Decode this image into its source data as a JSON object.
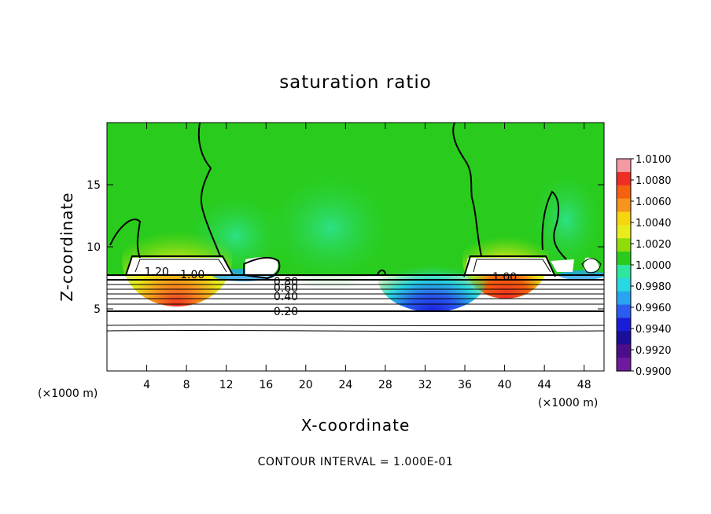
{
  "chart_data": {
    "type": "heatmap",
    "title": "saturation ratio",
    "xlabel": "X-coordinate",
    "ylabel": "Z-coordinate",
    "x_unit": "(×1000 m)",
    "xlim": [
      0,
      50
    ],
    "ylim": [
      0,
      20
    ],
    "x_ticks": [
      4,
      8,
      12,
      16,
      20,
      24,
      28,
      32,
      36,
      40,
      44,
      48
    ],
    "y_ticks": [
      5,
      10,
      15
    ],
    "colorbar": {
      "levels": [
        "1.0100",
        "1.0080",
        "1.0060",
        "1.0040",
        "1.0020",
        "1.0000",
        "0.9980",
        "0.9960",
        "0.9940",
        "0.9920",
        "0.9900"
      ],
      "colors": [
        "#f39aa5",
        "#ee2d24",
        "#f5610f",
        "#f7941d",
        "#f5d60f",
        "#e8ec1c",
        "#8fdc0a",
        "#29cc1c",
        "#2ee6a0",
        "#28d8e0",
        "#28a4f0",
        "#2a5cf0",
        "#1b1cd8",
        "#1a0e9a",
        "#4b0d8a",
        "#6e1aa0"
      ]
    },
    "contour_labels": [
      {
        "text": "1.20",
        "x": 5.0,
        "z": 8.0
      },
      {
        "text": "1.00",
        "x": 8.6,
        "z": 7.8
      },
      {
        "text": "0.80",
        "x": 18.0,
        "z": 7.2
      },
      {
        "text": "0.60",
        "x": 18.0,
        "z": 6.7
      },
      {
        "text": "0.40",
        "x": 18.0,
        "z": 6.0
      },
      {
        "text": "0.20",
        "x": 18.0,
        "z": 4.8
      },
      {
        "text": "1.00",
        "x": 40.0,
        "z": 7.6
      }
    ],
    "footer": "CONTOUR INTERVAL = 1.000E-01"
  }
}
